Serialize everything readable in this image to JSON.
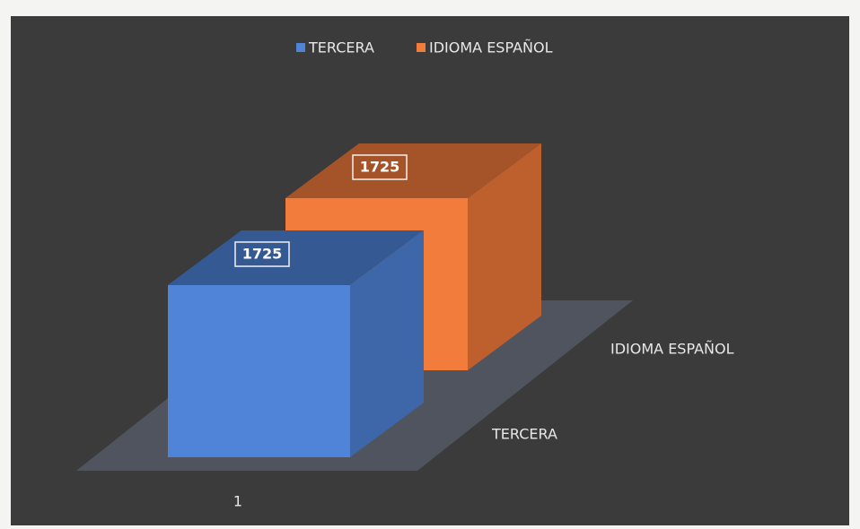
{
  "chart_data": {
    "type": "bar3d",
    "categories": [
      "1"
    ],
    "series": [
      {
        "name": "TERCERA",
        "color": "#4f84d8",
        "values": [
          1725
        ]
      },
      {
        "name": "IDIOMA  ESPAÑOL",
        "color": "#f27c3c",
        "values": [
          1725
        ]
      }
    ]
  }
}
